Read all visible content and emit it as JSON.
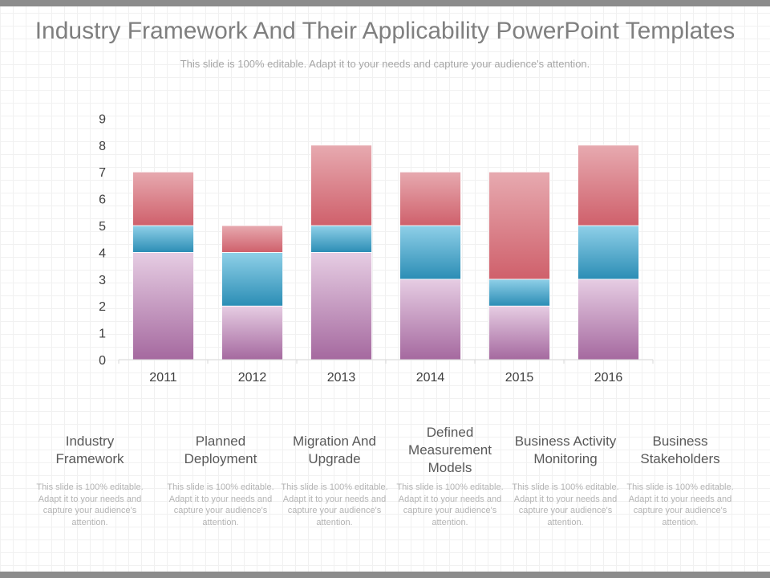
{
  "slide": {
    "title": "Industry Framework And Their Applicability PowerPoint Templates",
    "subtitle": "This slide is 100% editable. Adapt it to your needs and capture your audience's attention."
  },
  "colors": {
    "bottom_top": "#e6cde3",
    "bottom_bottom": "#a5699f",
    "middle_top": "#8fd0e8",
    "middle_bottom": "#2b8db5",
    "top_top": "#e7aab0",
    "top_bottom": "#cf606b"
  },
  "chart_data": {
    "type": "bar",
    "stacked": true,
    "categories": [
      "2011",
      "2012",
      "2013",
      "2014",
      "2015",
      "2016"
    ],
    "series": [
      {
        "values": [
          4,
          2,
          4,
          3,
          2,
          3
        ]
      },
      {
        "values": [
          1,
          2,
          1,
          2,
          1,
          2
        ]
      },
      {
        "values": [
          2,
          1,
          3,
          2,
          4,
          3
        ]
      }
    ],
    "ylim": [
      0,
      9
    ],
    "yticks": [
      "0",
      "1",
      "2",
      "3",
      "4",
      "5",
      "6",
      "7",
      "8",
      "9"
    ],
    "grid": false,
    "legend": "none"
  },
  "items": [
    {
      "title": "Industry Framework",
      "desc": "This slide is 100% editable. Adapt it to your needs and capture your audience's attention."
    },
    {
      "title": "Planned Deployment",
      "desc": "This slide is 100% editable. Adapt it to your needs and capture your audience's attention."
    },
    {
      "title": "Migration And Upgrade",
      "desc": "This slide is 100% editable. Adapt it to your needs and capture your audience's attention."
    },
    {
      "title": "Defined Measurement Models",
      "desc": "This slide is 100% editable. Adapt it to your needs and capture your audience's attention."
    },
    {
      "title": "Business Activity Monitoring",
      "desc": "This slide is 100% editable. Adapt it to your needs and capture your audience's attention."
    },
    {
      "title": "Business Stakeholders",
      "desc": "This slide is 100% editable. Adapt it to your needs and capture your audience's attention."
    }
  ]
}
